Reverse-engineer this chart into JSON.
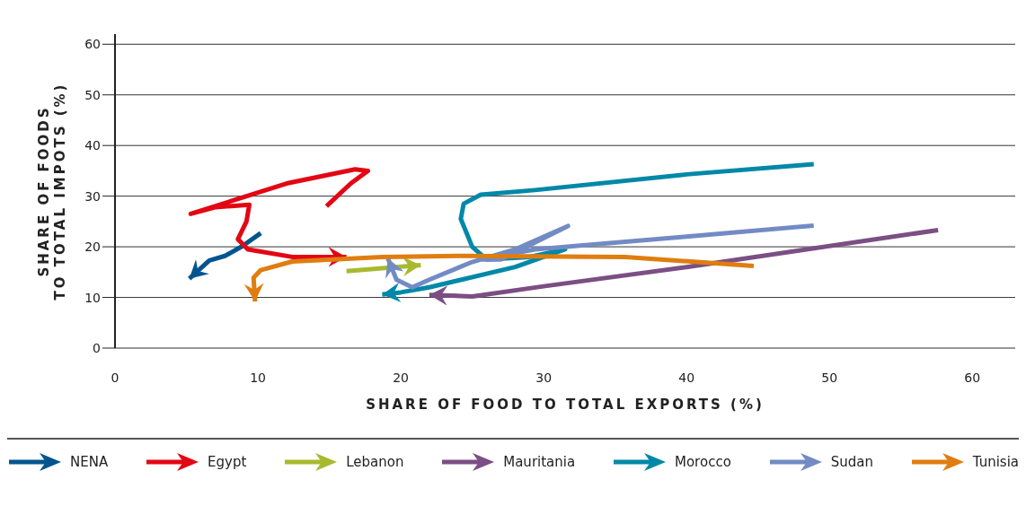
{
  "chart_data": {
    "type": "line",
    "xlabel": "SHARE OF FOOD TO TOTAL EXPORTS (%)",
    "ylabel": "SHARE OF FOODS\nTO TOTAL IMPOTS (%)",
    "xlim": [
      0,
      63
    ],
    "ylim": [
      0,
      62
    ],
    "xticks": [
      0,
      10,
      20,
      30,
      40,
      50,
      60
    ],
    "yticks": [
      0,
      10,
      20,
      30,
      40,
      50,
      60
    ],
    "grid": "y",
    "legend": "bottom",
    "line_style": "solid",
    "series": [
      {
        "name": "NENA",
        "color": "#00558f",
        "x": [
          10.2,
          8.9,
          7.7,
          6.6,
          5.2
        ],
        "values": [
          22.7,
          20.1,
          18.2,
          17.3,
          13.7
        ]
      },
      {
        "name": "Egypt",
        "color": "#e30613",
        "x": [
          14.8,
          16.5,
          17.7,
          16.8,
          12,
          5.3,
          7,
          9.4,
          9.2,
          8.6,
          9.3,
          12.4,
          16.2
        ],
        "values": [
          28,
          32.5,
          35,
          35.3,
          32.5,
          26.5,
          27.8,
          28.3,
          25,
          21.5,
          19.5,
          18,
          18
        ]
      },
      {
        "name": "Lebanon",
        "color": "#a8b92f",
        "x": [
          16.2,
          21.4
        ],
        "values": [
          15.2,
          16.4
        ]
      },
      {
        "name": "Mauritania",
        "color": "#7b4f83",
        "x": [
          57.6,
          40,
          30,
          25,
          22
        ],
        "values": [
          23.3,
          16,
          12.2,
          10.2,
          10.5
        ]
      },
      {
        "name": "Morocco",
        "color": "#0088a8",
        "x": [
          48.9,
          40,
          29.4,
          25.6,
          24.4,
          24.2,
          25,
          26,
          29,
          31.5,
          28,
          22,
          20,
          18.7
        ],
        "values": [
          36.3,
          34.3,
          31.2,
          30.3,
          28.5,
          25.5,
          20,
          17.5,
          18,
          19.5,
          16,
          12,
          11,
          10.6
        ]
      },
      {
        "name": "Sudan",
        "color": "#738bc4",
        "x": [
          48.9,
          40,
          29.4,
          25.5,
          27,
          31.7,
          28,
          25,
          22,
          20.8,
          19.7,
          19.1
        ],
        "values": [
          24.2,
          22,
          19.5,
          17.5,
          17.5,
          24.1,
          19.5,
          17,
          13.5,
          12,
          13.5,
          17.7
        ]
      },
      {
        "name": "Tunisia",
        "color": "#e07d10",
        "x": [
          44.7,
          35.7,
          24.4,
          18.7,
          12.4,
          10.2,
          9.7,
          9.8
        ],
        "values": [
          16.2,
          18,
          18.2,
          18,
          17.1,
          15.4,
          13.9,
          9.2
        ]
      }
    ]
  }
}
